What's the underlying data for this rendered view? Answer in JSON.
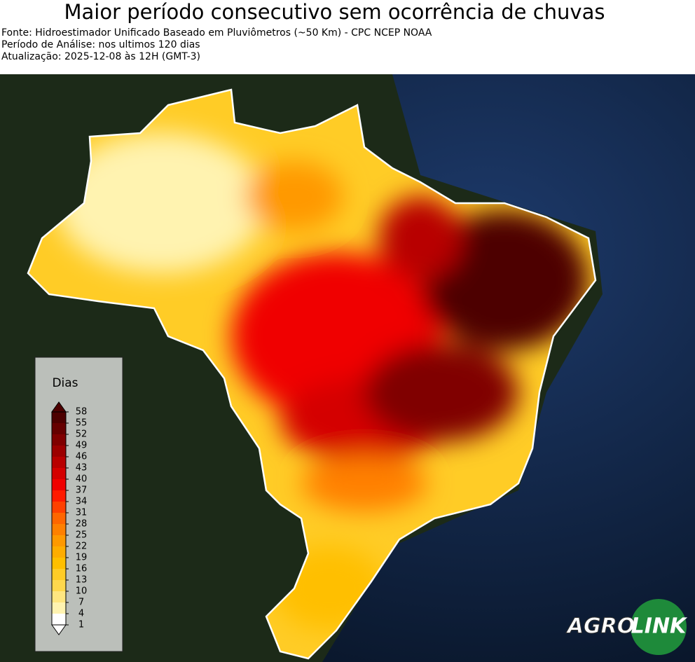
{
  "header": {
    "title": "Maior período consecutivo sem ocorrência de chuvas",
    "lines": [
      "Fonte: Hidroestimador Unificado Baseado em Pluviômetros (~50 Km) - CPC NCEP NOAA",
      "Período de Análise: nos ultimos 120 dias",
      "Atualização: 2025-12-08 às 12H (GMT-3)"
    ]
  },
  "legend": {
    "title": "Dias",
    "ticks": [
      1,
      4,
      7,
      10,
      13,
      16,
      19,
      22,
      25,
      28,
      31,
      34,
      37,
      40,
      43,
      46,
      49,
      52,
      55,
      58
    ],
    "colors": [
      "#ffffff",
      "#fff3b0",
      "#ffe680",
      "#ffd84d",
      "#ffcc26",
      "#ffbf00",
      "#ffad00",
      "#ff9900",
      "#ff8000",
      "#ff6600",
      "#ff4000",
      "#ff1a00",
      "#f00000",
      "#d40000",
      "#b80000",
      "#9c0000",
      "#800000",
      "#660000",
      "#4d0000"
    ]
  },
  "logo": {
    "part1": "AGRO",
    "part2": "LINK"
  }
}
